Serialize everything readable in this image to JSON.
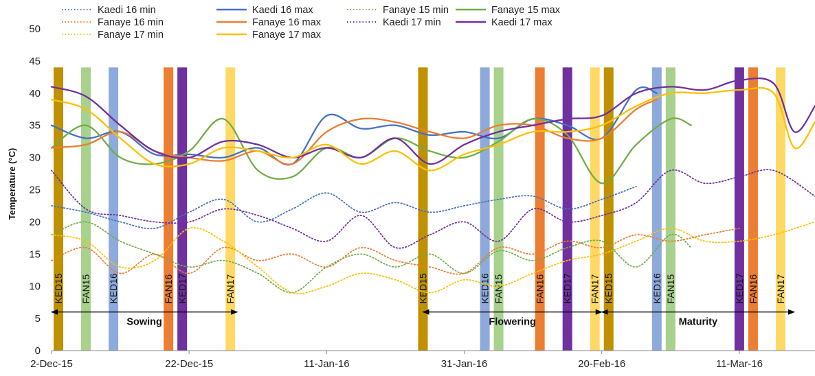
{
  "chart_data": {
    "type": "line",
    "title": "",
    "ylabel": "Temperature (°C)",
    "xlabel": "",
    "ylim": [
      0,
      50
    ],
    "yticks": [
      0,
      5,
      10,
      15,
      20,
      25,
      30,
      35,
      40,
      45,
      50
    ],
    "xlim": [
      "2015-12-02",
      "2016-03-22"
    ],
    "xticks": [
      {
        "date": "2015-12-02",
        "label": "2-Dec-15"
      },
      {
        "date": "2015-12-22",
        "label": "22-Dec-15"
      },
      {
        "date": "2016-01-11",
        "label": "11-Jan-16"
      },
      {
        "date": "2016-01-31",
        "label": "31-Jan-16"
      },
      {
        "date": "2016-02-20",
        "label": "20-Feb-16"
      },
      {
        "date": "2016-03-11",
        "label": "11-Mar-16"
      }
    ],
    "grid": false,
    "legend_position": "top",
    "series": [
      {
        "name": "Kaedi 16 min",
        "color": "#4472C4",
        "dash": "dot",
        "x": [
          "2015-12-02",
          "2015-12-07",
          "2015-12-12",
          "2015-12-17",
          "2015-12-22",
          "2015-12-27",
          "2016-01-01",
          "2016-01-06",
          "2016-01-11",
          "2016-01-16",
          "2016-01-21",
          "2016-01-26",
          "2016-01-31",
          "2016-02-05",
          "2016-02-10",
          "2016-02-15",
          "2016-02-20",
          "2016-02-25"
        ],
        "y": [
          22.5,
          21.5,
          20,
          19,
          21.5,
          23.5,
          20,
          22,
          24.5,
          21.5,
          23,
          21.5,
          22.5,
          23.5,
          24,
          22,
          23.5,
          25.5
        ]
      },
      {
        "name": "Kaedi 16 max",
        "color": "#4472C4",
        "dash": "solid",
        "x": [
          "2015-12-02",
          "2015-12-07",
          "2015-12-12",
          "2015-12-17",
          "2015-12-22",
          "2015-12-27",
          "2016-01-01",
          "2016-01-06",
          "2016-01-11",
          "2016-01-16",
          "2016-01-21",
          "2016-01-26",
          "2016-01-31",
          "2016-02-05",
          "2016-02-10",
          "2016-02-15",
          "2016-02-20",
          "2016-02-25",
          "2016-02-28"
        ],
        "y": [
          35,
          33,
          34,
          30.5,
          30.5,
          30,
          31.5,
          29,
          36.5,
          34.5,
          35,
          33.5,
          34,
          33,
          36,
          35,
          33,
          40.5,
          40
        ]
      },
      {
        "name": "Fanaye 15 min",
        "color": "#70AD47",
        "dash": "dot",
        "x": [
          "2015-12-02",
          "2015-12-07",
          "2015-12-12",
          "2015-12-17",
          "2015-12-22",
          "2015-12-27",
          "2016-01-01",
          "2016-01-06",
          "2016-01-11",
          "2016-01-16",
          "2016-01-21",
          "2016-01-26",
          "2016-01-31",
          "2016-02-05",
          "2016-02-10",
          "2016-02-15",
          "2016-02-20",
          "2016-02-25",
          "2016-03-01",
          "2016-03-04"
        ],
        "y": [
          18,
          20,
          17,
          15,
          13,
          14,
          12,
          9,
          13,
          15,
          13,
          15,
          12,
          15.5,
          14,
          16,
          17,
          13,
          18,
          16
        ]
      },
      {
        "name": "Fanaye 15 max",
        "color": "#70AD47",
        "dash": "solid",
        "x": [
          "2015-12-02",
          "2015-12-07",
          "2015-12-12",
          "2015-12-17",
          "2015-12-22",
          "2015-12-27",
          "2016-01-01",
          "2016-01-06",
          "2016-01-11",
          "2016-01-16",
          "2016-01-21",
          "2016-01-26",
          "2016-01-31",
          "2016-02-05",
          "2016-02-10",
          "2016-02-15",
          "2016-02-20",
          "2016-02-25",
          "2016-03-01",
          "2016-03-04"
        ],
        "y": [
          31.5,
          35,
          30,
          29,
          31,
          36,
          28,
          27,
          31.5,
          30,
          33,
          31,
          30,
          32.5,
          36,
          33.5,
          26,
          32,
          36,
          35
        ]
      },
      {
        "name": "Fanaye 16 min",
        "color": "#ED7D31",
        "dash": "dot",
        "x": [
          "2015-12-02",
          "2015-12-07",
          "2015-12-12",
          "2015-12-17",
          "2015-12-22",
          "2015-12-27",
          "2016-01-01",
          "2016-01-06",
          "2016-01-11",
          "2016-01-16",
          "2016-01-21",
          "2016-01-26",
          "2016-01-31",
          "2016-02-05",
          "2016-02-10",
          "2016-02-15",
          "2016-02-20",
          "2016-02-25",
          "2016-03-01",
          "2016-03-06",
          "2016-03-11"
        ],
        "y": [
          14,
          16,
          12,
          15,
          12,
          16,
          14,
          15,
          13,
          16,
          14,
          13,
          12,
          16,
          15,
          17,
          16,
          18,
          17,
          18,
          19
        ]
      },
      {
        "name": "Fanaye 16 max",
        "color": "#ED7D31",
        "dash": "solid",
        "x": [
          "2015-12-02",
          "2015-12-07",
          "2015-12-12",
          "2015-12-17",
          "2015-12-22",
          "2015-12-27",
          "2016-01-01",
          "2016-01-06",
          "2016-01-11",
          "2016-01-16",
          "2016-01-21",
          "2016-01-26",
          "2016-01-31",
          "2016-02-05",
          "2016-02-10",
          "2016-02-15",
          "2016-02-20",
          "2016-02-25",
          "2016-02-28"
        ],
        "y": [
          31.5,
          32,
          34,
          31,
          30,
          29.5,
          31,
          29,
          34,
          36,
          35.5,
          34,
          33,
          35,
          35,
          33,
          33,
          37.5,
          39
        ]
      },
      {
        "name": "Kaedi 17 min",
        "color": "#7030A0",
        "dash": "dot",
        "x": [
          "2015-12-02",
          "2015-12-07",
          "2015-12-12",
          "2015-12-17",
          "2015-12-22",
          "2015-12-27",
          "2016-01-01",
          "2016-01-06",
          "2016-01-11",
          "2016-01-16",
          "2016-01-21",
          "2016-01-26",
          "2016-01-31",
          "2016-02-05",
          "2016-02-10",
          "2016-02-15",
          "2016-02-20",
          "2016-02-25",
          "2016-03-01",
          "2016-03-06",
          "2016-03-11",
          "2016-03-16",
          "2016-03-22"
        ],
        "y": [
          28,
          22,
          21,
          20,
          20,
          22,
          21,
          19,
          17,
          21,
          16,
          18,
          20,
          17,
          22,
          20,
          21,
          23,
          28,
          26,
          27,
          28,
          24
        ]
      },
      {
        "name": "Kaedi 17 max",
        "color": "#7030A0",
        "dash": "solid",
        "x": [
          "2015-12-02",
          "2015-12-07",
          "2015-12-12",
          "2015-12-17",
          "2015-12-22",
          "2015-12-27",
          "2016-01-01",
          "2016-01-06",
          "2016-01-11",
          "2016-01-16",
          "2016-01-21",
          "2016-01-26",
          "2016-01-31",
          "2016-02-05",
          "2016-02-10",
          "2016-02-15",
          "2016-02-20",
          "2016-02-25",
          "2016-03-01",
          "2016-03-06",
          "2016-03-11",
          "2016-03-16",
          "2016-03-19",
          "2016-03-22"
        ],
        "y": [
          41,
          39.5,
          35,
          31,
          30,
          32.5,
          32,
          30,
          31.5,
          30,
          33,
          29,
          32,
          34,
          35,
          36,
          36.5,
          40,
          41,
          40.5,
          42,
          41.5,
          34,
          38
        ]
      },
      {
        "name": "Fanaye 17 min",
        "color": "#FFC000",
        "dash": "dot",
        "x": [
          "2015-12-02",
          "2015-12-07",
          "2015-12-12",
          "2015-12-17",
          "2015-12-22",
          "2015-12-27",
          "2016-01-01",
          "2016-01-06",
          "2016-01-11",
          "2016-01-16",
          "2016-01-21",
          "2016-01-26",
          "2016-01-31",
          "2016-02-05",
          "2016-02-10",
          "2016-02-15",
          "2016-02-20",
          "2016-02-25",
          "2016-03-01",
          "2016-03-06",
          "2016-03-11",
          "2016-03-16",
          "2016-03-22"
        ],
        "y": [
          18,
          17,
          13,
          14,
          19,
          17,
          13,
          9,
          10,
          12,
          11,
          9,
          11,
          10,
          12,
          14,
          15,
          17,
          19,
          17,
          17,
          18,
          20
        ]
      },
      {
        "name": "Fanaye 17 max",
        "color": "#FFC000",
        "dash": "solid",
        "x": [
          "2015-12-02",
          "2015-12-07",
          "2015-12-12",
          "2015-12-17",
          "2015-12-22",
          "2015-12-27",
          "2016-01-01",
          "2016-01-06",
          "2016-01-11",
          "2016-01-16",
          "2016-01-21",
          "2016-01-26",
          "2016-01-31",
          "2016-02-05",
          "2016-02-10",
          "2016-02-15",
          "2016-02-20",
          "2016-02-25",
          "2016-03-01",
          "2016-03-06",
          "2016-03-11",
          "2016-03-16",
          "2016-03-19",
          "2016-03-22"
        ],
        "y": [
          39,
          37.5,
          33,
          29,
          29,
          31.5,
          31,
          30,
          32,
          29,
          31,
          28,
          30.5,
          32,
          34,
          34,
          35,
          38,
          40,
          40,
          40.5,
          40,
          31.5,
          35.5
        ]
      }
    ],
    "event_bars": [
      {
        "label": "KED15",
        "date": "2015-12-03",
        "color": "#BF9000"
      },
      {
        "label": "FAN15",
        "date": "2015-12-07",
        "color": "#A9D18E"
      },
      {
        "label": "KED16",
        "date": "2015-12-11",
        "color": "#8EA9DB"
      },
      {
        "label": "FAN16",
        "date": "2015-12-19",
        "color": "#ED7D31"
      },
      {
        "label": "KED17",
        "date": "2015-12-21",
        "color": "#7030A0"
      },
      {
        "label": "FAN17",
        "date": "2015-12-28",
        "color": "#FFD966"
      },
      {
        "label": "KED15",
        "date": "2016-01-25",
        "color": "#BF9000"
      },
      {
        "label": "KED16",
        "date": "2016-02-03",
        "color": "#8EA9DB"
      },
      {
        "label": "FAN15",
        "date": "2016-02-05",
        "color": "#A9D18E"
      },
      {
        "label": "FAN16",
        "date": "2016-02-11",
        "color": "#ED7D31"
      },
      {
        "label": "KED17",
        "date": "2016-02-15",
        "color": "#7030A0"
      },
      {
        "label": "FAN17",
        "date": "2016-02-19",
        "color": "#FFD966"
      },
      {
        "label": "KED15",
        "date": "2016-02-21",
        "color": "#BF9000"
      },
      {
        "label": "KED16",
        "date": "2016-02-28",
        "color": "#8EA9DB"
      },
      {
        "label": "FAN15",
        "date": "2016-03-01",
        "color": "#A9D18E"
      },
      {
        "label": "KED17",
        "date": "2016-03-11",
        "color": "#7030A0"
      },
      {
        "label": "FAN16",
        "date": "2016-03-13",
        "color": "#ED7D31"
      },
      {
        "label": "FAN17",
        "date": "2016-03-17",
        "color": "#FFD966"
      }
    ],
    "phases": [
      {
        "label": "Sowing",
        "start": "2015-12-02",
        "end": "2015-12-29",
        "y": 6
      },
      {
        "label": "Flowering",
        "start": "2016-01-25",
        "end": "2016-02-20",
        "y": 6
      },
      {
        "label": "Maturity",
        "start": "2016-02-20",
        "end": "2016-03-19",
        "y": 6
      }
    ]
  }
}
